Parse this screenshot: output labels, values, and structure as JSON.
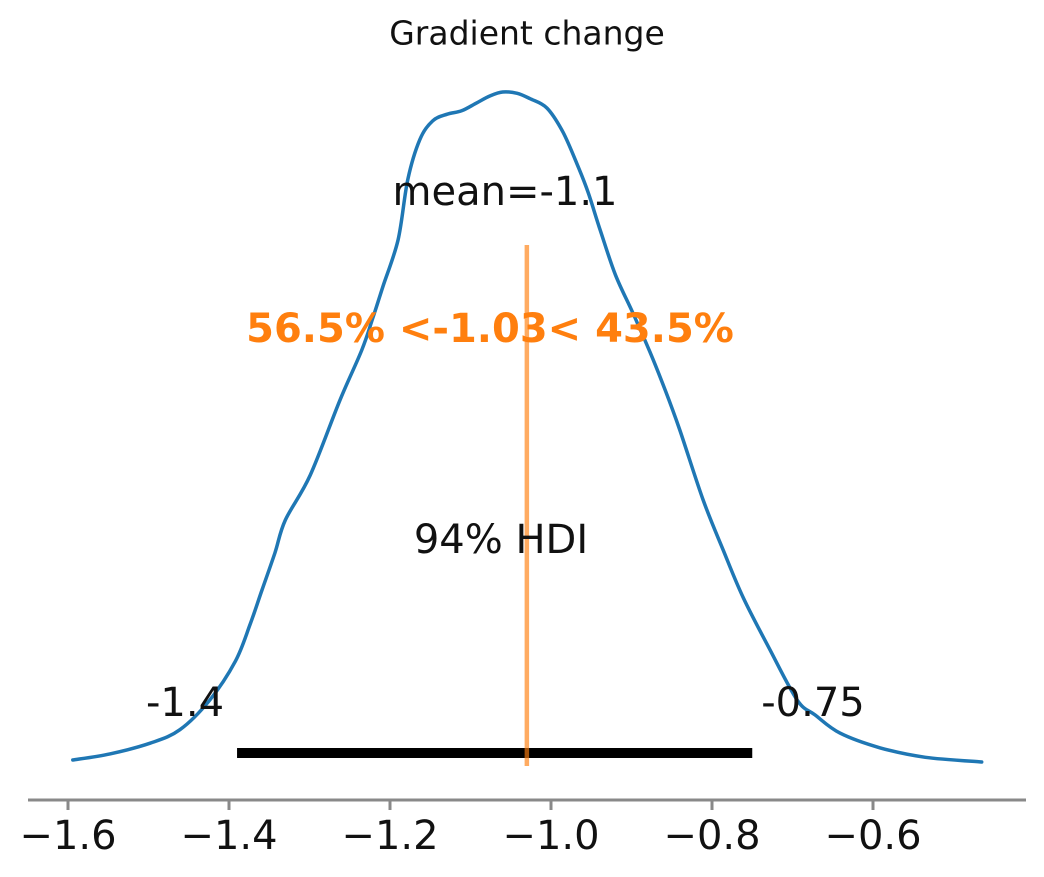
{
  "title": "Gradient change",
  "labels": {
    "mean": "mean=-1.1",
    "ref_val": "56.5% <-1.03< 43.5%",
    "hdi": "94% HDI",
    "hdi_lower": "-1.4",
    "hdi_upper": "-0.75"
  },
  "colors": {
    "curve": "#1f77b4",
    "ref_line": "#ff7f0e",
    "ref_text": "#ff7f0e",
    "hdi_bar": "#000000",
    "axis": "#898989",
    "text": "#111111"
  },
  "chart_data": {
    "type": "line",
    "variant": "posterior-density-kde",
    "title": "Gradient change",
    "xlabel": "",
    "ylabel": "",
    "grid": false,
    "legend": "none",
    "xlim": [
      -1.65,
      -0.41
    ],
    "x_ticks": [
      -1.6,
      -1.4,
      -1.2,
      -1.0,
      -0.8,
      -0.6
    ],
    "x_tick_labels": [
      "−1.6",
      "−1.4",
      "−1.2",
      "−1.0",
      "−0.8",
      "−0.6"
    ],
    "mean": -1.1,
    "hdi_prob": 0.94,
    "hdi_lower": -1.39,
    "hdi_upper": -0.75,
    "hdi_lower_label": "-1.4",
    "hdi_upper_label": "-0.75",
    "ref_value": -1.03,
    "pct_below_ref": 56.5,
    "pct_above_ref": 43.5,
    "density": {
      "x": [
        -1.594,
        -1.548,
        -1.498,
        -1.461,
        -1.424,
        -1.392,
        -1.374,
        -1.359,
        -1.343,
        -1.33,
        -1.299,
        -1.262,
        -1.235,
        -1.221,
        -1.209,
        -1.19,
        -1.178,
        -1.163,
        -1.147,
        -1.129,
        -1.111,
        -1.092,
        -1.076,
        -1.06,
        -1.042,
        -1.026,
        -1.005,
        -0.985,
        -0.966,
        -0.954,
        -0.939,
        -0.92,
        -0.899,
        -0.877,
        -0.858,
        -0.84,
        -0.811,
        -0.786,
        -0.761,
        -0.728,
        -0.694,
        -0.672,
        -0.641,
        -0.591,
        -0.535,
        -0.465
      ],
      "y_normalized": [
        0.006,
        0.015,
        0.031,
        0.051,
        0.095,
        0.153,
        0.207,
        0.259,
        0.314,
        0.363,
        0.43,
        0.542,
        0.616,
        0.665,
        0.71,
        0.78,
        0.869,
        0.929,
        0.957,
        0.967,
        0.972,
        0.984,
        0.994,
        1.0,
        0.998,
        0.99,
        0.976,
        0.94,
        0.888,
        0.851,
        0.795,
        0.728,
        0.673,
        0.613,
        0.556,
        0.497,
        0.393,
        0.318,
        0.247,
        0.17,
        0.095,
        0.073,
        0.046,
        0.024,
        0.01,
        0.003
      ]
    }
  }
}
